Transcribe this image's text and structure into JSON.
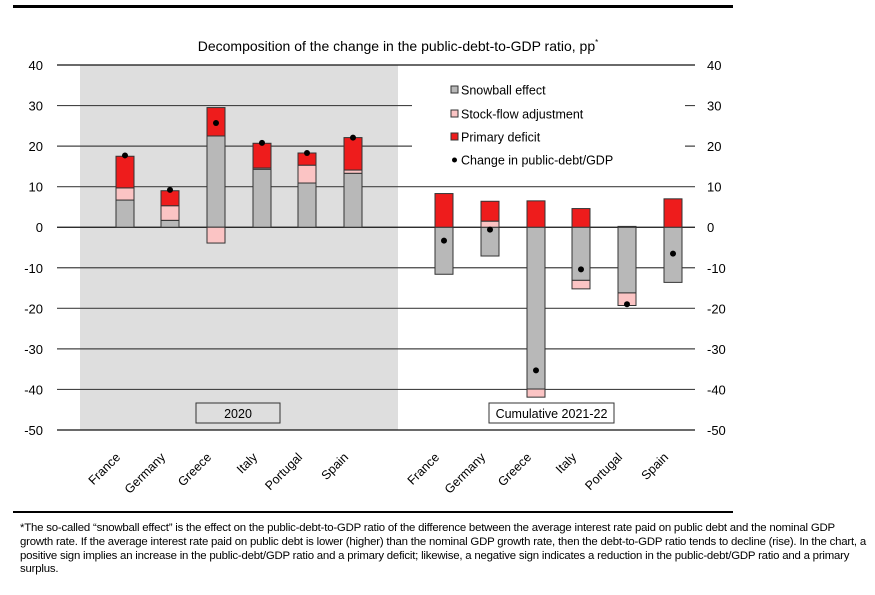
{
  "chart_data": {
    "type": "bar",
    "subtype": "stacked-bar-with-markers",
    "title": "Decomposition of the change in the public-debt-to-GDP ratio, pp",
    "title_superscript": "*",
    "xlabel": "",
    "ylabel": "",
    "ylim": [
      -50,
      40
    ],
    "yticks": [
      40,
      30,
      20,
      10,
      0,
      -10,
      -20,
      -30,
      -40,
      -50
    ],
    "ytick_labels": [
      "40",
      "30",
      "20",
      "10",
      "0",
      "-10",
      "-20",
      "-30",
      "-40",
      "-50"
    ],
    "grid": true,
    "legend_position": "top-right",
    "legend": [
      {
        "name": "Snowball effect",
        "marker": "square",
        "color": "#b8b8b8"
      },
      {
        "name": "Stock-flow adjustment",
        "marker": "square",
        "color": "#fbc4c4"
      },
      {
        "name": "Primary deficit",
        "marker": "square",
        "color": "#ee1c1c"
      },
      {
        "name": "Change in public-debt/GDP",
        "marker": "dot",
        "color": "#000000"
      }
    ],
    "panels": [
      {
        "label": "2020",
        "shaded": true,
        "categories": [
          "France",
          "Germany",
          "Greece",
          "Italy",
          "Portugal",
          "Spain"
        ],
        "series": [
          {
            "name": "Snowball effect",
            "values": [
              6.7,
              1.7,
              22.5,
              14.3,
              10.9,
              13.3
            ]
          },
          {
            "name": "Stock-flow adjustment",
            "values": [
              3.0,
              3.6,
              -3.9,
              0.3,
              4.4,
              0.8
            ]
          },
          {
            "name": "Primary deficit",
            "values": [
              7.8,
              3.7,
              7.0,
              6.1,
              3.0,
              8.0
            ]
          },
          {
            "name": "Change in public-debt/GDP",
            "values": [
              17.7,
              9.2,
              25.7,
              20.8,
              18.3,
              22.1
            ]
          }
        ]
      },
      {
        "label": "Cumulative 2021-22",
        "shaded": false,
        "categories": [
          "France",
          "Germany",
          "Greece",
          "Italy",
          "Portugal",
          "Spain"
        ],
        "series": [
          {
            "name": "Snowball effect",
            "values": [
              -11.6,
              -7.1,
              -39.9,
              -13.1,
              -16.2,
              -13.6
            ]
          },
          {
            "name": "Stock-flow adjustment",
            "values": [
              0.0,
              1.5,
              -2.0,
              -2.1,
              -3.1,
              0.0
            ]
          },
          {
            "name": "Primary deficit",
            "values": [
              8.3,
              4.9,
              6.5,
              4.6,
              0.2,
              7.0
            ]
          },
          {
            "name": "Change in public-debt/GDP",
            "values": [
              -3.3,
              -0.6,
              -35.3,
              -10.4,
              -19.0,
              -6.5
            ]
          }
        ]
      }
    ],
    "colors": {
      "snowball": "#b8b8b8",
      "stock_flow": "#fbc4c4",
      "primary": "#ee1c1c",
      "panel_shade": "#dedede"
    }
  },
  "footnote": "*The so-called “snowball effect” is the effect on the public-debt-to-GDP ratio of the difference between the average interest rate paid on public debt and the nominal GDP growth rate. If the average interest rate paid on public debt is lower (higher) than the nominal GDP growth rate, then the debt-to-GDP ratio tends to decline (rise). In the chart, a positive sign implies an increase in the public-debt/GDP ratio and a primary deficit; likewise, a negative sign indicates a reduction in the public-debt/GDP ratio and a primary surplus."
}
